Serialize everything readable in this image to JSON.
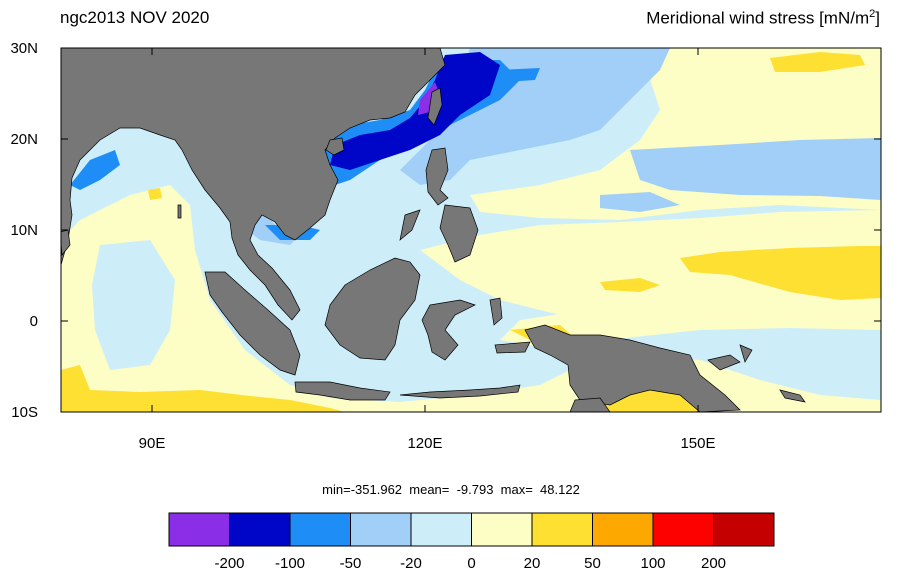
{
  "title_left": "ngc2013 NOV 2020",
  "title_right": "Meridional wind stress [mN/m",
  "title_right_sup": "2",
  "title_right_end": "]",
  "stats": "min=-351.962  mean=  -9.793  max=  48.122",
  "axis": {
    "lat_labels": [
      "30N",
      "20N",
      "10N",
      "0",
      "10S"
    ],
    "lon_labels": [
      "90E",
      "120E",
      "150E"
    ]
  },
  "colors": {
    "land": "#777777",
    "ocean_default": "#cdeef9"
  },
  "colorbar": {
    "colors": [
      "#8b2ee8",
      "#0006c8",
      "#1e8df5",
      "#a2cff8",
      "#cdeef9",
      "#fdfdc6",
      "#fde032",
      "#fda800",
      "#fd0000",
      "#c40000"
    ],
    "labels": [
      "-200",
      "-100",
      "-50",
      "-20",
      "0",
      "20",
      "50",
      "100",
      "200"
    ]
  }
}
